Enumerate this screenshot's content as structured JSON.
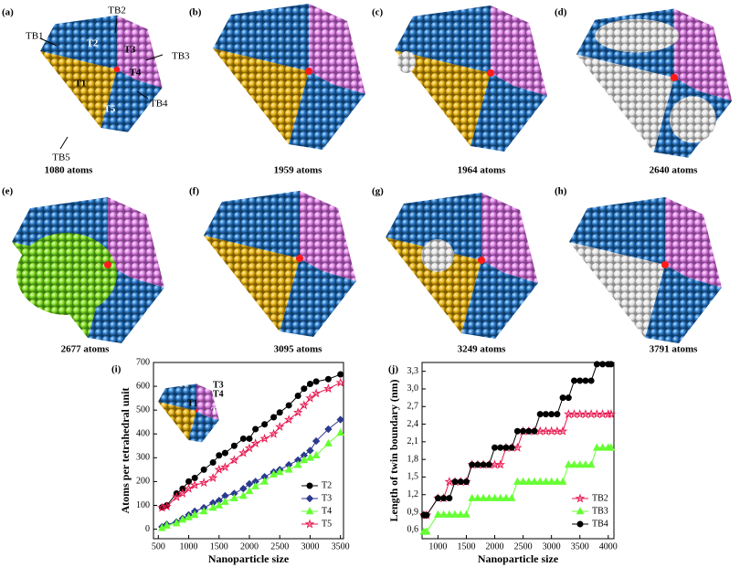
{
  "panels": [
    {
      "label": "(a)",
      "caption": "1080 atoms",
      "annotations": [
        "TB1",
        "TB2",
        "TB3",
        "TB4",
        "TB5",
        "T2",
        "T3",
        "T4",
        "T1",
        "T5"
      ]
    },
    {
      "label": "(b)",
      "caption": "1959 atoms"
    },
    {
      "label": "(c)",
      "caption": "1964 atoms"
    },
    {
      "label": "(d)",
      "caption": "2640 atoms"
    },
    {
      "label": "(e)",
      "caption": "2677 atoms"
    },
    {
      "label": "(f)",
      "caption": "3095 atoms"
    },
    {
      "label": "(g)",
      "caption": "3249 atoms"
    },
    {
      "label": "(h)",
      "caption": "3791 atoms"
    }
  ],
  "chart_data": [
    {
      "type": "line",
      "label": "(i)",
      "x_label": "Nanoparticle size",
      "y_label": "Atoms per tetrahedral unit",
      "annotations": [
        "T2",
        "T3",
        "T4",
        "T1",
        "T5"
      ],
      "x": [
        561,
        640,
        800,
        900,
        1000,
        1100,
        1250,
        1400,
        1500,
        1600,
        1750,
        1900,
        2000,
        2100,
        2250,
        2400,
        2500,
        2650,
        2800,
        2900,
        3000,
        3100,
        3300,
        3500
      ],
      "xlim": [
        420,
        3550
      ],
      "xticks": [
        500,
        1000,
        1500,
        2000,
        2500,
        3000,
        3500
      ],
      "ylim": [
        -40,
        700
      ],
      "yticks": [
        0,
        100,
        200,
        300,
        400,
        500,
        600,
        700
      ],
      "legend": "lower right",
      "series": [
        {
          "name": "T2",
          "color": "#000000",
          "marker": "circle",
          "values": [
            92,
            100,
            150,
            170,
            200,
            215,
            250,
            280,
            310,
            320,
            350,
            380,
            380,
            420,
            440,
            470,
            490,
            520,
            560,
            590,
            610,
            620,
            630,
            650
          ]
        },
        {
          "name": "T3",
          "color": "#2b3a8f",
          "marker": "diamond",
          "values": [
            10,
            20,
            30,
            45,
            60,
            75,
            90,
            110,
            120,
            140,
            150,
            170,
            190,
            200,
            220,
            240,
            250,
            270,
            290,
            310,
            330,
            370,
            420,
            460
          ]
        },
        {
          "name": "T4",
          "color": "#66ff33",
          "marker": "triangle",
          "values": [
            5,
            15,
            25,
            40,
            50,
            60,
            75,
            90,
            100,
            115,
            130,
            140,
            160,
            180,
            200,
            230,
            240,
            250,
            270,
            290,
            300,
            310,
            360,
            405
          ]
        },
        {
          "name": "T5",
          "color": "#e8174f",
          "marker": "star",
          "values": [
            90,
            95,
            135,
            150,
            170,
            185,
            195,
            215,
            250,
            260,
            290,
            320,
            340,
            360,
            380,
            400,
            430,
            460,
            490,
            520,
            550,
            570,
            590,
            615
          ]
        }
      ]
    },
    {
      "type": "line",
      "label": "(j)",
      "x_label": "Nanoparticle size",
      "y_label": "Length of twin boundary (nm)",
      "x": [
        750,
        800,
        1000,
        1100,
        1200,
        1300,
        1400,
        1500,
        1600,
        1700,
        1800,
        1900,
        2000,
        2100,
        2200,
        2300,
        2400,
        2500,
        2600,
        2700,
        2800,
        2900,
        3000,
        3100,
        3200,
        3300,
        3400,
        3500,
        3600,
        3700,
        3800,
        3900,
        4000,
        4050
      ],
      "xlim": [
        720,
        4100
      ],
      "xticks": [
        1000,
        1500,
        2000,
        2500,
        3000,
        3500,
        4000
      ],
      "ylim": [
        0.45,
        3.45
      ],
      "yticks": [
        {
          "value": 0.6,
          "label": "0,6"
        },
        {
          "value": 0.9,
          "label": "0,9"
        },
        {
          "value": 1.2,
          "label": "1,2"
        },
        {
          "value": 1.5,
          "label": "1,5"
        },
        {
          "value": 1.8,
          "label": "1,8"
        },
        {
          "value": 2.1,
          "label": "2,1"
        },
        {
          "value": 2.4,
          "label": "2,4"
        },
        {
          "value": 2.7,
          "label": "2,7"
        },
        {
          "value": 3.0,
          "label": "3,0"
        },
        {
          "value": 3.3,
          "label": "3,3"
        }
      ],
      "legend": "lower right",
      "series": [
        {
          "name": "TB2",
          "color": "#e8174f",
          "marker": "star",
          "values": [
            0.85,
            0.85,
            1.14,
            1.14,
            1.42,
            1.42,
            1.42,
            1.42,
            1.71,
            1.71,
            1.71,
            1.71,
            1.71,
            1.71,
            2.0,
            2.0,
            2.0,
            2.28,
            2.28,
            2.28,
            2.28,
            2.28,
            2.28,
            2.28,
            2.28,
            2.57,
            2.57,
            2.57,
            2.57,
            2.57,
            2.57,
            2.57,
            2.57,
            2.57
          ]
        },
        {
          "name": "TB3",
          "color": "#66ff33",
          "marker": "triangle",
          "values": [
            0.57,
            0.57,
            0.86,
            0.86,
            0.86,
            0.86,
            0.86,
            0.86,
            1.14,
            1.14,
            1.14,
            1.14,
            1.14,
            1.14,
            1.14,
            1.14,
            1.42,
            1.42,
            1.42,
            1.42,
            1.42,
            1.42,
            1.42,
            1.42,
            1.42,
            1.71,
            1.71,
            1.71,
            1.71,
            1.71,
            2.0,
            2.0,
            2.0,
            2.0
          ]
        },
        {
          "name": "TB4",
          "color": "#000000",
          "marker": "circle",
          "values": [
            0.85,
            0.85,
            1.14,
            1.14,
            1.14,
            1.42,
            1.42,
            1.42,
            1.71,
            1.71,
            1.71,
            1.71,
            2.0,
            2.0,
            2.0,
            2.0,
            2.28,
            2.28,
            2.28,
            2.28,
            2.57,
            2.57,
            2.57,
            2.57,
            2.85,
            2.85,
            3.14,
            3.14,
            3.14,
            3.14,
            3.42,
            3.42,
            3.42,
            3.42
          ]
        }
      ]
    }
  ]
}
